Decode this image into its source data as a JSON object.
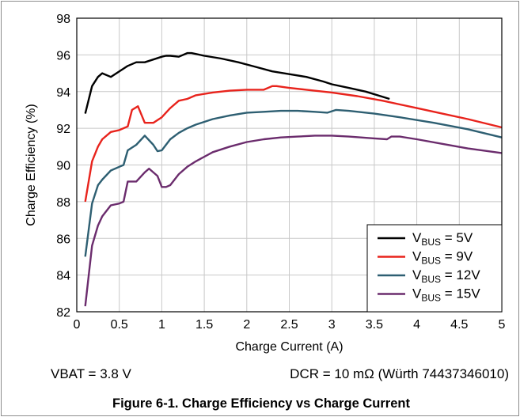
{
  "chart_data": {
    "type": "line",
    "xlabel": "Charge Current (A)",
    "ylabel": "Charge Efficiency (%)",
    "xlim": [
      0,
      5
    ],
    "ylim": [
      82,
      98
    ],
    "xticks": [
      "0",
      "0.5",
      "1",
      "1.5",
      "2",
      "2.5",
      "3",
      "3.5",
      "4",
      "4.5",
      "5"
    ],
    "yticks": [
      "82",
      "84",
      "86",
      "88",
      "90",
      "92",
      "94",
      "96",
      "98"
    ],
    "grid": true,
    "legend_position": "bottom-right",
    "series": [
      {
        "label_main": "V",
        "label_sub": "BUS",
        "label_rest": " = 5V",
        "color": "#000000",
        "x": [
          0.1,
          0.18,
          0.25,
          0.3,
          0.4,
          0.5,
          0.6,
          0.7,
          0.8,
          0.9,
          1.0,
          1.05,
          1.1,
          1.2,
          1.3,
          1.35,
          1.4,
          1.5,
          1.7,
          1.9,
          2.1,
          2.3,
          2.5,
          2.7,
          2.9,
          3.0,
          3.2,
          3.4,
          3.68
        ],
        "y": [
          92.8,
          94.3,
          94.8,
          95.0,
          94.8,
          95.1,
          95.4,
          95.6,
          95.6,
          95.75,
          95.9,
          95.95,
          95.95,
          95.9,
          96.1,
          96.1,
          96.05,
          95.95,
          95.8,
          95.6,
          95.35,
          95.1,
          94.95,
          94.8,
          94.55,
          94.4,
          94.2,
          94.0,
          93.6
        ]
      },
      {
        "label_main": "V",
        "label_sub": "BUS",
        "label_rest": " = 9V",
        "color": "#e8231c",
        "x": [
          0.1,
          0.18,
          0.25,
          0.3,
          0.4,
          0.5,
          0.6,
          0.65,
          0.72,
          0.8,
          0.9,
          1.0,
          1.1,
          1.2,
          1.3,
          1.4,
          1.6,
          1.8,
          2.0,
          2.2,
          2.3,
          2.35,
          2.5,
          2.7,
          3.0,
          3.3,
          3.6,
          4.0,
          4.3,
          4.6,
          5.0
        ],
        "y": [
          88.0,
          90.2,
          91.0,
          91.4,
          91.8,
          91.9,
          92.1,
          93.0,
          93.2,
          92.3,
          92.3,
          92.6,
          93.1,
          93.5,
          93.6,
          93.8,
          93.95,
          94.05,
          94.1,
          94.1,
          94.3,
          94.3,
          94.2,
          94.1,
          93.95,
          93.75,
          93.5,
          93.1,
          92.8,
          92.5,
          92.05
        ]
      },
      {
        "label_main": "V",
        "label_sub": "BUS",
        "label_rest": " = 12V",
        "color": "#2e5f72",
        "x": [
          0.1,
          0.18,
          0.25,
          0.3,
          0.4,
          0.5,
          0.55,
          0.6,
          0.7,
          0.8,
          0.9,
          0.95,
          1.0,
          1.1,
          1.2,
          1.3,
          1.4,
          1.6,
          1.8,
          2.0,
          2.2,
          2.4,
          2.6,
          2.8,
          2.95,
          3.05,
          3.2,
          3.5,
          3.8,
          4.2,
          4.6,
          5.0
        ],
        "y": [
          85.0,
          87.9,
          88.9,
          89.2,
          89.7,
          89.9,
          90.0,
          90.8,
          91.1,
          91.6,
          91.1,
          90.75,
          90.8,
          91.4,
          91.75,
          92.0,
          92.2,
          92.5,
          92.7,
          92.85,
          92.9,
          92.95,
          92.95,
          92.9,
          92.85,
          93.0,
          92.95,
          92.8,
          92.6,
          92.3,
          91.95,
          91.5
        ]
      },
      {
        "label_main": "V",
        "label_sub": "BUS",
        "label_rest": " = 15V",
        "color": "#6b2c6d",
        "x": [
          0.1,
          0.18,
          0.25,
          0.3,
          0.4,
          0.5,
          0.55,
          0.6,
          0.7,
          0.8,
          0.85,
          0.95,
          1.0,
          1.05,
          1.1,
          1.2,
          1.3,
          1.4,
          1.6,
          1.8,
          2.0,
          2.2,
          2.4,
          2.6,
          2.8,
          3.0,
          3.2,
          3.5,
          3.65,
          3.7,
          3.8,
          4.0,
          4.3,
          4.6,
          5.0
        ],
        "y": [
          82.3,
          85.6,
          86.7,
          87.2,
          87.8,
          87.9,
          88.0,
          89.1,
          89.1,
          89.6,
          89.8,
          89.4,
          88.8,
          88.8,
          88.9,
          89.5,
          89.9,
          90.2,
          90.7,
          91.0,
          91.25,
          91.4,
          91.5,
          91.55,
          91.6,
          91.6,
          91.55,
          91.45,
          91.4,
          91.55,
          91.55,
          91.4,
          91.15,
          90.9,
          90.65
        ]
      }
    ]
  },
  "notes": {
    "left": "VBAT = 3.8 V",
    "right": "DCR = 10 mΩ (Würth 74437346010)"
  },
  "caption": "Figure 6-1. Charge Efficiency vs Charge Current"
}
